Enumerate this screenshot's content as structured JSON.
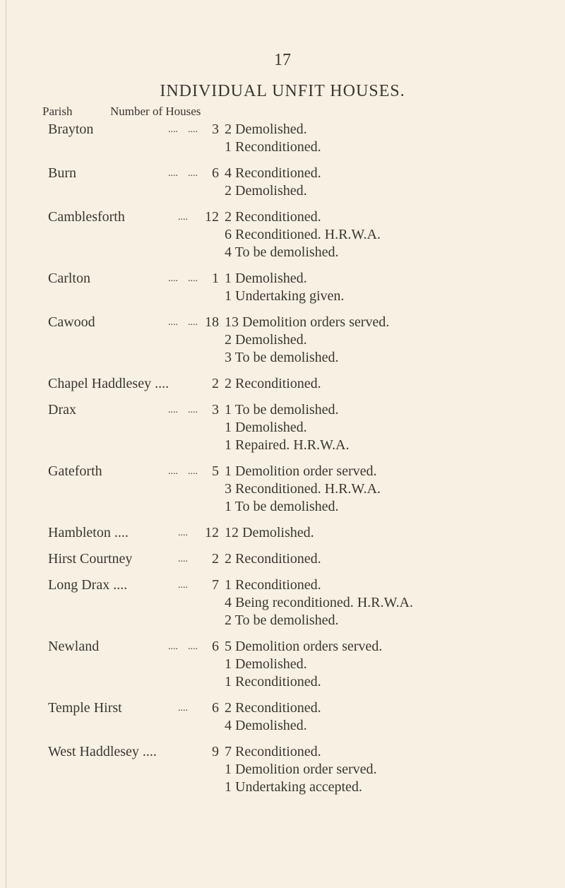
{
  "page_number": "17",
  "title": "INDIVIDUAL UNFIT HOUSES.",
  "headers": {
    "parish": "Parish",
    "number": "Number of Houses"
  },
  "entries": [
    {
      "parish": "Brayton",
      "dots": "....    ....",
      "count": "3",
      "details": [
        "2 Demolished.",
        "1 Reconditioned."
      ]
    },
    {
      "parish": "Burn",
      "dots": "....    ....",
      "count": "6",
      "details": [
        "4 Reconditioned.",
        "2 Demolished."
      ]
    },
    {
      "parish": "Camblesforth",
      "dots": "    ....",
      "count": "12",
      "details": [
        "2 Reconditioned.",
        "6 Reconditioned.  H.R.W.A.",
        "4 To be demolished."
      ]
    },
    {
      "parish": "Carlton",
      "dots": "....    ....",
      "count": "1",
      "details": [
        "1 Demolished.",
        "1 Undertaking given."
      ]
    },
    {
      "parish": "Cawood",
      "dots": "....    ....",
      "count": "18",
      "details": [
        "13 Demolition orders served.",
        "2 Demolished.",
        "3 To be demolished."
      ]
    },
    {
      "parish": "Chapel Haddlesey ....",
      "dots": "",
      "count": "2",
      "details": [
        "2 Reconditioned."
      ]
    },
    {
      "parish": "Drax",
      "dots": "....    ....",
      "count": "3",
      "details": [
        "1 To be demolished.",
        "1 Demolished.",
        "1 Repaired.  H.R.W.A."
      ]
    },
    {
      "parish": "Gateforth",
      "dots": "....    ....",
      "count": "5",
      "details": [
        "1 Demolition order served.",
        "3 Reconditioned.  H.R.W.A.",
        "1 To be demolished."
      ]
    },
    {
      "parish": "Hambleton ....",
      "dots": "    ....",
      "count": "12",
      "details": [
        "12 Demolished."
      ]
    },
    {
      "parish": "Hirst Courtney",
      "dots": "    ....",
      "count": "2",
      "details": [
        "2 Reconditioned."
      ]
    },
    {
      "parish": "Long Drax ....",
      "dots": "    ....",
      "count": "7",
      "details": [
        "1 Reconditioned.",
        "4 Being reconditioned.  H.R.W.A.",
        "2 To be demolished."
      ]
    },
    {
      "parish": "Newland",
      "dots": "....    ....",
      "count": "6",
      "details": [
        "5 Demolition orders served.",
        "1 Demolished.",
        "1 Reconditioned."
      ]
    },
    {
      "parish": "Temple Hirst",
      "dots": "    ....",
      "count": "6",
      "details": [
        "2 Reconditioned.",
        "4 Demolished."
      ]
    },
    {
      "parish": "West Haddlesey ....",
      "dots": "",
      "count": "9",
      "details": [
        "7 Reconditioned.",
        "1 Demolition order served.",
        "1 Undertaking accepted."
      ]
    }
  ]
}
